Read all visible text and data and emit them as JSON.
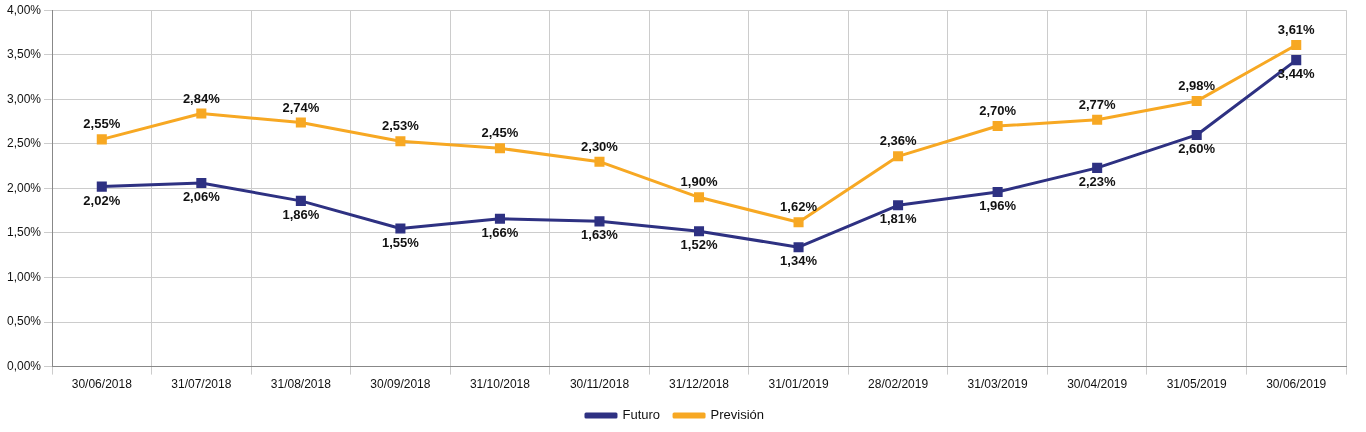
{
  "chart_data": {
    "type": "line",
    "categories": [
      "30/06/2018",
      "31/07/2018",
      "31/08/2018",
      "30/09/2018",
      "31/10/2018",
      "30/11/2018",
      "31/12/2018",
      "31/01/2019",
      "28/02/2019",
      "31/03/2019",
      "30/04/2019",
      "31/05/2019",
      "30/06/2019"
    ],
    "series": [
      {
        "name": "Futuro",
        "color": "#2e3182",
        "values": [
          2.02,
          2.06,
          1.86,
          1.55,
          1.66,
          1.63,
          1.52,
          1.34,
          1.81,
          1.96,
          2.23,
          2.6,
          3.44
        ],
        "value_labels": [
          "2,02%",
          "2,06%",
          "1,86%",
          "1,55%",
          "1,66%",
          "1,63%",
          "1,52%",
          "1,34%",
          "1,81%",
          "1,96%",
          "2,23%",
          "2,60%",
          "3,44%"
        ]
      },
      {
        "name": "Previsión",
        "color": "#f7a823",
        "values": [
          2.55,
          2.84,
          2.74,
          2.53,
          2.45,
          2.3,
          1.9,
          1.62,
          2.36,
          2.7,
          2.77,
          2.98,
          3.61
        ],
        "value_labels": [
          "2,55%",
          "2,84%",
          "2,74%",
          "2,53%",
          "2,45%",
          "2,30%",
          "1,90%",
          "1,62%",
          "2,36%",
          "2,70%",
          "2,77%",
          "2,98%",
          "3,61%"
        ]
      }
    ],
    "ylim": [
      0,
      4
    ],
    "yticks": [
      {
        "value": 0,
        "label": "0,00%"
      },
      {
        "value": 0.5,
        "label": "0,50%"
      },
      {
        "value": 1,
        "label": "1,00%"
      },
      {
        "value": 1.5,
        "label": "1,50%"
      },
      {
        "value": 2,
        "label": "2,00%"
      },
      {
        "value": 2.5,
        "label": "2,50%"
      },
      {
        "value": 3,
        "label": "3,00%"
      },
      {
        "value": 3.5,
        "label": "3,50%"
      },
      {
        "value": 4,
        "label": "4,00%"
      }
    ],
    "grid": true,
    "legend": "bottom",
    "marker": "square",
    "line_style": "solid"
  }
}
